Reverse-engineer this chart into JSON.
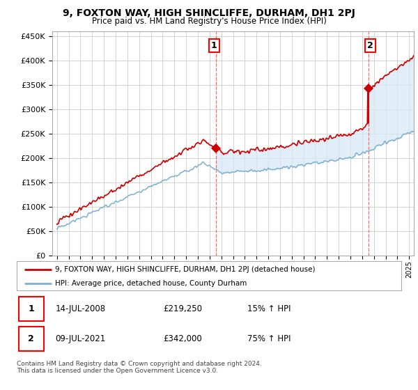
{
  "title": "9, FOXTON WAY, HIGH SHINCLIFFE, DURHAM, DH1 2PJ",
  "subtitle": "Price paid vs. HM Land Registry's House Price Index (HPI)",
  "ylabel_ticks": [
    "£0",
    "£50K",
    "£100K",
    "£150K",
    "£200K",
    "£250K",
    "£300K",
    "£350K",
    "£400K",
    "£450K"
  ],
  "ytick_values": [
    0,
    50000,
    100000,
    150000,
    200000,
    250000,
    300000,
    350000,
    400000,
    450000
  ],
  "xlim_start": 1994.6,
  "xlim_end": 2025.4,
  "ylim": [
    0,
    460000
  ],
  "marker1_year": 2008.53,
  "marker1_value": 219250,
  "marker2_year": 2021.52,
  "marker2_value": 342000,
  "legend_line1": "9, FOXTON WAY, HIGH SHINCLIFFE, DURHAM, DH1 2PJ (detached house)",
  "legend_line2": "HPI: Average price, detached house, County Durham",
  "table_row1": [
    "1",
    "14-JUL-2008",
    "£219,250",
    "15% ↑ HPI"
  ],
  "table_row2": [
    "2",
    "09-JUL-2021",
    "£342,000",
    "75% ↑ HPI"
  ],
  "footnote": "Contains HM Land Registry data © Crown copyright and database right 2024.\nThis data is licensed under the Open Government Licence v3.0.",
  "hpi_color": "#7bafd4",
  "price_color": "#cc0000",
  "fill_color": "#d6e8f5",
  "marker_color": "#cc0000",
  "vline_color": "#ff6666",
  "background_color": "#ffffff",
  "grid_color": "#cccccc",
  "seed": 17
}
